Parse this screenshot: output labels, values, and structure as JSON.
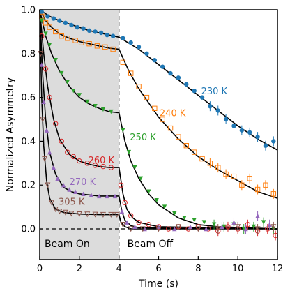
{
  "chart_data": {
    "type": "scatter",
    "xlabel": "Time (s)",
    "ylabel": "Normalized Asymmetry",
    "xlim": [
      0,
      12
    ],
    "ylim": [
      -0.14,
      1.0
    ],
    "xticks": [
      "0",
      "2",
      "4",
      "6",
      "8",
      "10",
      "12"
    ],
    "yticks": [
      "0.0",
      "0.2",
      "0.4",
      "0.6",
      "0.8",
      "1.0"
    ],
    "grid": false,
    "beam_off_time": 4,
    "regions": [
      {
        "label": "Beam On",
        "x_range": [
          0,
          4
        ],
        "fill": "#dcdcdc"
      },
      {
        "label": "Beam Off",
        "x_range": [
          4,
          12
        ],
        "fill": "#ffffff"
      }
    ],
    "series": [
      {
        "name": "230 K",
        "color": "#1f77b4",
        "marker": "filled-circle",
        "fit": {
          "on": [
            [
              0,
              1.0
            ],
            [
              0.5,
              0.97
            ],
            [
              1,
              0.95
            ],
            [
              1.5,
              0.935
            ],
            [
              2,
              0.92
            ],
            [
              2.5,
              0.905
            ],
            [
              3,
              0.895
            ],
            [
              3.5,
              0.885
            ],
            [
              4,
              0.875
            ],
            [
              5,
              0.82
            ],
            [
              6,
              0.75
            ],
            [
              7,
              0.68
            ],
            [
              8,
              0.61
            ],
            [
              9,
              0.54
            ],
            [
              10,
              0.47
            ],
            [
              11,
              0.41
            ],
            [
              12,
              0.36
            ]
          ]
        },
        "points": [
          [
            0.1,
            0.99
          ],
          [
            0.4,
            0.97
          ],
          [
            0.7,
            0.96
          ],
          [
            1.0,
            0.95
          ],
          [
            1.3,
            0.94
          ],
          [
            1.6,
            0.93
          ],
          [
            1.9,
            0.92
          ],
          [
            2.2,
            0.915
          ],
          [
            2.5,
            0.905
          ],
          [
            2.8,
            0.9
          ],
          [
            3.1,
            0.895
          ],
          [
            3.4,
            0.885
          ],
          [
            3.7,
            0.88
          ],
          [
            4.2,
            0.87
          ],
          [
            4.6,
            0.85
          ],
          [
            5.0,
            0.83
          ],
          [
            5.4,
            0.8
          ],
          [
            5.8,
            0.77
          ],
          [
            6.2,
            0.74
          ],
          [
            6.6,
            0.71
          ],
          [
            7.0,
            0.69
          ],
          [
            7.4,
            0.66
          ],
          [
            7.8,
            0.63
          ],
          [
            8.2,
            0.6
          ],
          [
            8.6,
            0.56
          ],
          [
            9.0,
            0.54
          ],
          [
            9.4,
            0.5
          ],
          [
            9.8,
            0.47
          ],
          [
            10.2,
            0.45
          ],
          [
            10.6,
            0.44
          ],
          [
            11.0,
            0.42
          ],
          [
            11.4,
            0.38
          ],
          [
            11.8,
            0.4
          ]
        ]
      },
      {
        "name": "240 K",
        "color": "#ff7f0e",
        "marker": "open-square",
        "fit": {
          "on": [
            [
              0,
              1.0
            ],
            [
              0.3,
              0.95
            ],
            [
              0.6,
              0.92
            ],
            [
              1,
              0.89
            ],
            [
              1.5,
              0.87
            ],
            [
              2,
              0.855
            ],
            [
              2.5,
              0.845
            ],
            [
              3,
              0.835
            ],
            [
              3.5,
              0.825
            ],
            [
              4,
              0.82
            ],
            [
              4.5,
              0.72
            ],
            [
              5,
              0.64
            ],
            [
              6,
              0.51
            ],
            [
              7,
              0.41
            ],
            [
              8,
              0.33
            ],
            [
              9,
              0.27
            ],
            [
              10,
              0.22
            ],
            [
              11,
              0.17
            ],
            [
              12,
              0.14
            ]
          ]
        },
        "points": [
          [
            0.1,
            0.97
          ],
          [
            0.3,
            0.94
          ],
          [
            0.5,
            0.92
          ],
          [
            0.8,
            0.9
          ],
          [
            1.1,
            0.88
          ],
          [
            1.4,
            0.87
          ],
          [
            1.8,
            0.86
          ],
          [
            2.1,
            0.85
          ],
          [
            2.5,
            0.845
          ],
          [
            2.9,
            0.835
          ],
          [
            3.3,
            0.83
          ],
          [
            3.7,
            0.82
          ],
          [
            4.2,
            0.76
          ],
          [
            4.6,
            0.71
          ],
          [
            5.0,
            0.65
          ],
          [
            5.4,
            0.6
          ],
          [
            5.8,
            0.55
          ],
          [
            6.2,
            0.5
          ],
          [
            6.6,
            0.46
          ],
          [
            7.0,
            0.42
          ],
          [
            7.4,
            0.38
          ],
          [
            7.8,
            0.35
          ],
          [
            8.2,
            0.32
          ],
          [
            8.6,
            0.3
          ],
          [
            9.0,
            0.28
          ],
          [
            9.4,
            0.25
          ],
          [
            9.8,
            0.24
          ],
          [
            10.2,
            0.2
          ],
          [
            10.6,
            0.23
          ],
          [
            11.0,
            0.18
          ],
          [
            11.4,
            0.2
          ],
          [
            11.8,
            0.16
          ]
        ]
      },
      {
        "name": "250 K",
        "color": "#2ca02c",
        "marker": "filled-triangle-down",
        "fit": {
          "on": [
            [
              0,
              1.0
            ],
            [
              0.3,
              0.88
            ],
            [
              0.6,
              0.8
            ],
            [
              1,
              0.72
            ],
            [
              1.5,
              0.65
            ],
            [
              2,
              0.6
            ],
            [
              2.5,
              0.57
            ],
            [
              3,
              0.55
            ],
            [
              3.5,
              0.535
            ],
            [
              4,
              0.53
            ],
            [
              4.3,
              0.4
            ],
            [
              4.6,
              0.31
            ],
            [
              5,
              0.23
            ],
            [
              5.5,
              0.16
            ],
            [
              6,
              0.11
            ],
            [
              7,
              0.05
            ],
            [
              8,
              0.02
            ],
            [
              9,
              0.01
            ],
            [
              12,
              0.0
            ]
          ]
        },
        "points": [
          [
            0.1,
            0.95
          ],
          [
            0.3,
            0.89
          ],
          [
            0.5,
            0.84
          ],
          [
            0.8,
            0.77
          ],
          [
            1.1,
            0.71
          ],
          [
            1.4,
            0.67
          ],
          [
            1.7,
            0.63
          ],
          [
            2.0,
            0.61
          ],
          [
            2.4,
            0.58
          ],
          [
            2.8,
            0.56
          ],
          [
            3.2,
            0.545
          ],
          [
            3.6,
            0.535
          ],
          [
            4.2,
            0.45
          ],
          [
            4.5,
            0.35
          ],
          [
            4.8,
            0.28
          ],
          [
            5.1,
            0.23
          ],
          [
            5.5,
            0.17
          ],
          [
            5.9,
            0.13
          ],
          [
            6.3,
            0.1
          ],
          [
            6.8,
            0.07
          ],
          [
            7.3,
            0.05
          ],
          [
            7.8,
            0.04
          ],
          [
            8.3,
            0.03
          ],
          [
            8.8,
            0.02
          ],
          [
            9.3,
            0.01
          ],
          [
            9.8,
            0.02
          ],
          [
            10.3,
            0.0
          ],
          [
            10.8,
            0.01
          ],
          [
            11.3,
            0.03
          ],
          [
            11.8,
            0.0
          ]
        ]
      },
      {
        "name": "260 K",
        "color": "#d62728",
        "marker": "open-circle",
        "fit": {
          "on": [
            [
              0,
              1.0
            ],
            [
              0.2,
              0.8
            ],
            [
              0.4,
              0.65
            ],
            [
              0.7,
              0.5
            ],
            [
              1,
              0.41
            ],
            [
              1.5,
              0.34
            ],
            [
              2,
              0.31
            ],
            [
              2.5,
              0.295
            ],
            [
              3,
              0.285
            ],
            [
              3.5,
              0.28
            ],
            [
              4,
              0.28
            ],
            [
              4.2,
              0.16
            ],
            [
              4.4,
              0.09
            ],
            [
              4.7,
              0.05
            ],
            [
              5,
              0.03
            ],
            [
              6,
              0.01
            ],
            [
              12,
              0.0
            ]
          ]
        },
        "points": [
          [
            0.1,
            0.88
          ],
          [
            0.3,
            0.73
          ],
          [
            0.5,
            0.6
          ],
          [
            0.8,
            0.48
          ],
          [
            1.1,
            0.4
          ],
          [
            1.4,
            0.35
          ],
          [
            1.7,
            0.33
          ],
          [
            2.0,
            0.31
          ],
          [
            2.4,
            0.3
          ],
          [
            2.8,
            0.29
          ],
          [
            3.2,
            0.285
          ],
          [
            3.6,
            0.28
          ],
          [
            4.1,
            0.2
          ],
          [
            4.3,
            0.12
          ],
          [
            4.6,
            0.06
          ],
          [
            5.0,
            0.03
          ],
          [
            5.5,
            0.02
          ],
          [
            6.0,
            0.01
          ],
          [
            6.5,
            0.0
          ],
          [
            7.0,
            0.01
          ],
          [
            7.5,
            0.0
          ],
          [
            8.0,
            0.01
          ],
          [
            8.5,
            0.0
          ],
          [
            9.0,
            -0.01
          ],
          [
            9.5,
            0.01
          ],
          [
            10.0,
            0.0
          ],
          [
            10.5,
            0.02
          ],
          [
            11.0,
            -0.01
          ],
          [
            11.5,
            0.0
          ],
          [
            11.9,
            -0.03
          ]
        ]
      },
      {
        "name": "270 K",
        "color": "#9467bd",
        "marker": "filled-triangle-up",
        "fit": {
          "on": [
            [
              0,
              1.0
            ],
            [
              0.15,
              0.7
            ],
            [
              0.3,
              0.5
            ],
            [
              0.5,
              0.35
            ],
            [
              0.8,
              0.25
            ],
            [
              1.2,
              0.19
            ],
            [
              1.6,
              0.17
            ],
            [
              2,
              0.16
            ],
            [
              3,
              0.15
            ],
            [
              4,
              0.15
            ],
            [
              4.15,
              0.08
            ],
            [
              4.3,
              0.04
            ],
            [
              4.6,
              0.015
            ],
            [
              5,
              0.005
            ],
            [
              12,
              0.0
            ]
          ]
        },
        "points": [
          [
            0.1,
            0.75
          ],
          [
            0.2,
            0.58
          ],
          [
            0.35,
            0.45
          ],
          [
            0.5,
            0.35
          ],
          [
            0.7,
            0.28
          ],
          [
            0.9,
            0.23
          ],
          [
            1.2,
            0.2
          ],
          [
            1.5,
            0.18
          ],
          [
            1.8,
            0.17
          ],
          [
            2.2,
            0.16
          ],
          [
            2.6,
            0.155
          ],
          [
            3.0,
            0.15
          ],
          [
            3.4,
            0.15
          ],
          [
            3.8,
            0.15
          ],
          [
            4.15,
            0.08
          ],
          [
            4.4,
            0.03
          ],
          [
            4.8,
            0.01
          ],
          [
            5.3,
            0.0
          ],
          [
            6.0,
            0.01
          ],
          [
            6.8,
            0.0
          ],
          [
            7.6,
            0.01
          ],
          [
            8.4,
            0.0
          ],
          [
            9.2,
            0.01
          ],
          [
            9.8,
            0.03
          ],
          [
            10.4,
            0.0
          ],
          [
            11.0,
            0.06
          ],
          [
            11.6,
            0.02
          ]
        ]
      },
      {
        "name": "305 K",
        "color": "#8c564b",
        "marker": "open-triangle-down",
        "fit": {
          "on": [
            [
              0,
              1.0
            ],
            [
              0.1,
              0.6
            ],
            [
              0.2,
              0.38
            ],
            [
              0.35,
              0.22
            ],
            [
              0.5,
              0.14
            ],
            [
              0.8,
              0.09
            ],
            [
              1.2,
              0.075
            ],
            [
              2,
              0.068
            ],
            [
              3,
              0.065
            ],
            [
              4,
              0.065
            ],
            [
              4.1,
              0.03
            ],
            [
              4.3,
              0.01
            ],
            [
              4.6,
              0.0
            ],
            [
              12,
              0.0
            ]
          ]
        },
        "points": [
          [
            0.05,
            0.8
          ],
          [
            0.15,
            0.5
          ],
          [
            0.25,
            0.32
          ],
          [
            0.4,
            0.2
          ],
          [
            0.6,
            0.12
          ],
          [
            0.8,
            0.09
          ],
          [
            1.0,
            0.08
          ],
          [
            1.3,
            0.075
          ],
          [
            1.6,
            0.07
          ],
          [
            2.0,
            0.068
          ],
          [
            2.4,
            0.067
          ],
          [
            2.8,
            0.066
          ],
          [
            3.2,
            0.065
          ],
          [
            3.6,
            0.065
          ],
          [
            3.9,
            0.065
          ],
          [
            4.2,
            0.02
          ],
          [
            4.6,
            0.0
          ],
          [
            5.2,
            0.0
          ],
          [
            6.0,
            0.0
          ],
          [
            7.0,
            0.01
          ],
          [
            8.0,
            0.0
          ],
          [
            9.0,
            0.0
          ],
          [
            10.0,
            0.01
          ],
          [
            11.0,
            0.0
          ],
          [
            11.8,
            0.01
          ]
        ]
      }
    ]
  }
}
